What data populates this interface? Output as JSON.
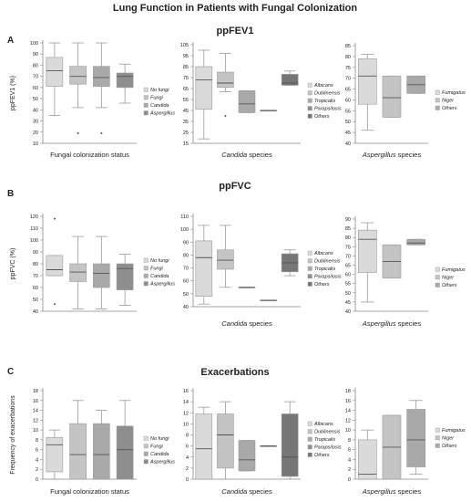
{
  "figure_title": "Lung Function in Patients with Fungal Colonization",
  "colors": {
    "box_shades": [
      "#dadada",
      "#c4c4c4",
      "#a9a9a9",
      "#8e8e8e",
      "#767676"
    ],
    "whisker": "#9a9a9a",
    "median": "#555555",
    "axis": "#888888",
    "text": "#222222"
  },
  "chart_data": [
    {
      "type": "box",
      "panel": "A",
      "section_title": "ppFEV1",
      "xlabel": "Fungal colonization status",
      "ylabel": "ppFEV1 (%)",
      "ylim": [
        10,
        100
      ],
      "yticks": [
        10,
        20,
        30,
        40,
        50,
        60,
        70,
        80,
        90,
        100
      ],
      "legend_position": "right",
      "series": [
        {
          "name": "No fungi",
          "q1": 61,
          "median": 75,
          "q3": 87,
          "whisker_low": 35,
          "whisker_high": 100
        },
        {
          "name": "Fungi",
          "q1": 63,
          "median": 70,
          "q3": 79,
          "whisker_low": 42,
          "whisker_high": 100,
          "outliers": [
            19
          ]
        },
        {
          "name": "Candida",
          "q1": 61,
          "median": 69,
          "q3": 79,
          "whisker_low": 42,
          "whisker_high": 100,
          "outliers": [
            19
          ]
        },
        {
          "name": "Aspergillus",
          "q1": 60,
          "median": 70,
          "q3": 73,
          "whisker_low": 46,
          "whisker_high": 81
        }
      ]
    },
    {
      "type": "box",
      "panel": "A",
      "xlabel": "Candida species",
      "xlabel_italic": "Candida",
      "ylabel": "",
      "ylim": [
        15,
        105
      ],
      "yticks": [
        15,
        25,
        35,
        45,
        55,
        65,
        75,
        85,
        95,
        105
      ],
      "legend_position": "right",
      "series": [
        {
          "name": "Albicans",
          "q1": 46,
          "median": 73,
          "q3": 85,
          "whisker_low": 19,
          "whisker_high": 100
        },
        {
          "name": "Dublinensis",
          "q1": 66,
          "median": 70,
          "q3": 80,
          "whisker_low": 62,
          "whisker_high": 97,
          "outliers": [
            40
          ]
        },
        {
          "name": "Tropicalis",
          "q1": 43,
          "median": 51,
          "q3": 63,
          "whisker_low": 43,
          "whisker_high": 63
        },
        {
          "name": "Parapsilosis",
          "q1": 45,
          "median": 45,
          "q3": 45,
          "whisker_low": 45,
          "whisker_high": 45
        },
        {
          "name": "Others",
          "q1": 68,
          "median": 70,
          "q3": 78,
          "whisker_low": 68,
          "whisker_high": 81
        }
      ]
    },
    {
      "type": "box",
      "panel": "A",
      "xlabel": "Aspergillus species",
      "xlabel_italic": "Aspergillus",
      "ylabel": "",
      "ylim": [
        40,
        85
      ],
      "yticks": [
        40,
        45,
        50,
        55,
        60,
        65,
        70,
        75,
        80,
        85
      ],
      "legend_position": "right",
      "series": [
        {
          "name": "Fumigatus",
          "q1": 58,
          "median": 71,
          "q3": 79,
          "whisker_low": 46,
          "whisker_high": 81
        },
        {
          "name": "Niger",
          "q1": 52,
          "median": 61,
          "q3": 71,
          "whisker_low": 52,
          "whisker_high": 71
        },
        {
          "name": "Others",
          "q1": 63,
          "median": 67,
          "q3": 71,
          "whisker_low": 63,
          "whisker_high": 71
        }
      ]
    },
    {
      "type": "box",
      "panel": "B",
      "section_title": "ppFVC",
      "xlabel": "",
      "ylabel": "ppFVC (%)",
      "ylim": [
        40,
        120
      ],
      "yticks": [
        40,
        50,
        60,
        70,
        80,
        90,
        100,
        110,
        120
      ],
      "legend_position": "right",
      "series": [
        {
          "name": "No fungi",
          "q1": 70,
          "median": 75,
          "q3": 87,
          "whisker_low": 70,
          "whisker_high": 87,
          "outliers": [
            118,
            46
          ]
        },
        {
          "name": "Fungi",
          "q1": 65,
          "median": 73,
          "q3": 80,
          "whisker_low": 42,
          "whisker_high": 103
        },
        {
          "name": "Candida",
          "q1": 60,
          "median": 72,
          "q3": 80,
          "whisker_low": 42,
          "whisker_high": 103
        },
        {
          "name": "Aspergillus",
          "q1": 58,
          "median": 76,
          "q3": 80,
          "whisker_low": 45,
          "whisker_high": 88
        }
      ]
    },
    {
      "type": "box",
      "panel": "B",
      "xlabel": "Candida species",
      "xlabel_italic": "Candida",
      "ylabel": "",
      "ylim": [
        40,
        110
      ],
      "yticks": [
        40,
        50,
        60,
        70,
        80,
        90,
        100,
        110
      ],
      "legend_position": "right",
      "series": [
        {
          "name": "Albicans",
          "q1": 48,
          "median": 78,
          "q3": 91,
          "whisker_low": 42,
          "whisker_high": 103
        },
        {
          "name": "Dublinensis",
          "q1": 69,
          "median": 76,
          "q3": 84,
          "whisker_low": 55,
          "whisker_high": 103
        },
        {
          "name": "Tropicalis",
          "q1": 55,
          "median": 55,
          "q3": 55,
          "whisker_low": 55,
          "whisker_high": 55
        },
        {
          "name": "Parapsilosis",
          "q1": 45,
          "median": 45,
          "q3": 45,
          "whisker_low": 45,
          "whisker_high": 45
        },
        {
          "name": "Others",
          "q1": 67,
          "median": 74,
          "q3": 81,
          "whisker_low": 64,
          "whisker_high": 84
        }
      ]
    },
    {
      "type": "box",
      "panel": "B",
      "xlabel": "Aspergillus species",
      "xlabel_italic": "Aspergillus",
      "ylabel": "",
      "ylim": [
        40,
        90
      ],
      "yticks": [
        40,
        45,
        50,
        55,
        60,
        65,
        70,
        75,
        80,
        85,
        90
      ],
      "legend_position": "right",
      "series": [
        {
          "name": "Fumigatus",
          "q1": 61,
          "median": 79,
          "q3": 84,
          "whisker_low": 45,
          "whisker_high": 88
        },
        {
          "name": "Niger",
          "q1": 58,
          "median": 67,
          "q3": 76,
          "whisker_low": 58,
          "whisker_high": 76
        },
        {
          "name": "Others",
          "q1": 76,
          "median": 77,
          "q3": 79,
          "whisker_low": 76,
          "whisker_high": 79
        }
      ]
    },
    {
      "type": "box",
      "panel": "C",
      "section_title": "Exacerbations",
      "xlabel": "Fungal colonization status",
      "ylabel": "Frequency of exacerbations",
      "ylim": [
        0,
        18
      ],
      "yticks": [
        0,
        2,
        4,
        6,
        8,
        10,
        12,
        14,
        16,
        18
      ],
      "legend_position": "right",
      "series": [
        {
          "name": "No fungi",
          "q1": 1.5,
          "median": 7,
          "q3": 8.5,
          "whisker_low": 0,
          "whisker_high": 10
        },
        {
          "name": "Fungi",
          "q1": 0,
          "median": 5,
          "q3": 11.3,
          "whisker_low": 0,
          "whisker_high": 16
        },
        {
          "name": "Candida",
          "q1": 0,
          "median": 5,
          "q3": 11.3,
          "whisker_low": 0,
          "whisker_high": 14
        },
        {
          "name": "Aspergillus",
          "q1": 0,
          "median": 6,
          "q3": 10.8,
          "whisker_low": 0,
          "whisker_high": 16
        }
      ]
    },
    {
      "type": "box",
      "panel": "C",
      "xlabel": "Candida species",
      "xlabel_italic": "Candida",
      "ylabel": "",
      "ylim": [
        0,
        16
      ],
      "yticks": [
        0,
        2,
        4,
        6,
        8,
        10,
        12,
        14,
        16
      ],
      "legend_position": "right",
      "series": [
        {
          "name": "Albicans",
          "q1": 0,
          "median": 5.5,
          "q3": 11.8,
          "whisker_low": 0,
          "whisker_high": 13
        },
        {
          "name": "Dublinensis",
          "q1": 2,
          "median": 8,
          "q3": 11.8,
          "whisker_low": 0,
          "whisker_high": 14
        },
        {
          "name": "Tropicalis",
          "q1": 1.5,
          "median": 3.5,
          "q3": 7,
          "whisker_low": 1.5,
          "whisker_high": 7
        },
        {
          "name": "Parapsilosis",
          "q1": 6,
          "median": 6,
          "q3": 6,
          "whisker_low": 6,
          "whisker_high": 6
        },
        {
          "name": "Others",
          "q1": 0.5,
          "median": 4,
          "q3": 11.8,
          "whisker_low": 0,
          "whisker_high": 14
        }
      ]
    },
    {
      "type": "box",
      "panel": "C",
      "xlabel": "Aspergillus species",
      "xlabel_italic": "Aspergillus",
      "ylabel": "",
      "ylim": [
        0,
        18
      ],
      "yticks": [
        0,
        2,
        4,
        6,
        8,
        10,
        12,
        14,
        16,
        18
      ],
      "legend_position": "right",
      "series": [
        {
          "name": "Fumigatus",
          "q1": 0,
          "median": 1,
          "q3": 8,
          "whisker_low": 0,
          "whisker_high": 10
        },
        {
          "name": "Niger",
          "q1": 0,
          "median": 6.5,
          "q3": 13,
          "whisker_low": 0,
          "whisker_high": 13
        },
        {
          "name": "Others",
          "q1": 2.5,
          "median": 8,
          "q3": 14.2,
          "whisker_low": 1,
          "whisker_high": 16
        }
      ]
    }
  ]
}
